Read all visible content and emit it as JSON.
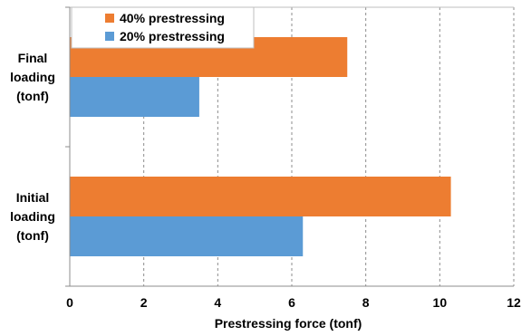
{
  "chart_data": {
    "type": "bar",
    "orientation": "horizontal",
    "categories": [
      "Final loading (tonf)",
      "Initial loading (tonf)"
    ],
    "category_lines": [
      [
        "Final",
        "loading",
        "(tonf)"
      ],
      [
        "Initial",
        "loading",
        "(tonf)"
      ]
    ],
    "series": [
      {
        "name": "40% prestressing",
        "color": "#ED7D31",
        "values": [
          7.5,
          10.3
        ]
      },
      {
        "name": "20% prestressing",
        "color": "#5B9BD5",
        "values": [
          3.5,
          6.3
        ]
      }
    ],
    "xlabel": "Prestressing force (tonf)",
    "xlim": [
      0,
      12
    ],
    "xticks": [
      "0",
      "2",
      "4",
      "6",
      "8",
      "10",
      "12"
    ],
    "grid": "vertical dashed",
    "legend_position": "top-left"
  }
}
